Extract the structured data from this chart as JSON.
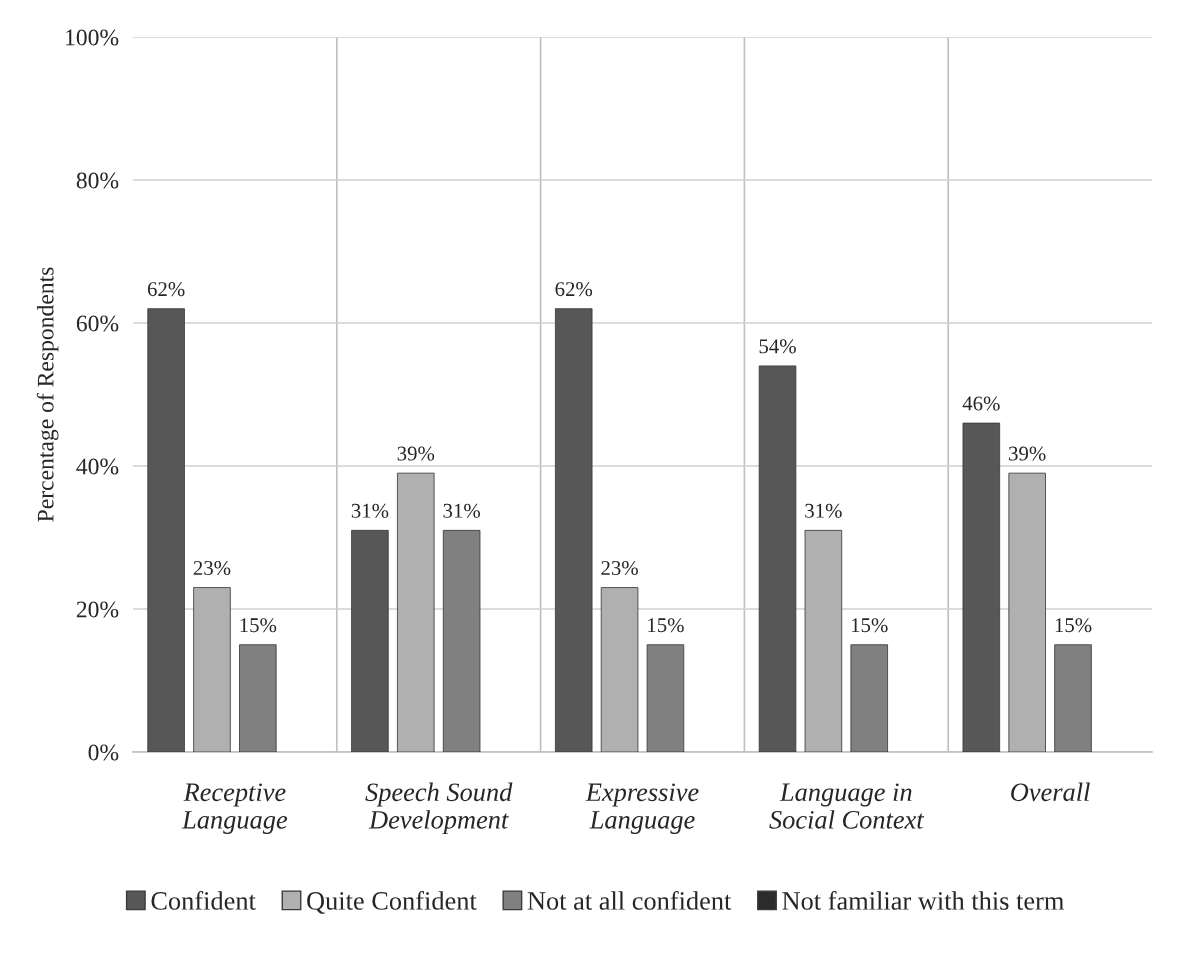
{
  "chart_data": {
    "type": "bar",
    "ylabel": "Percentage of Respondents",
    "categories": [
      "Receptive\nLanguage",
      "Speech Sound\nDevelopment",
      "Expressive\nLanguage",
      "Language in\nSocial Context",
      "Overall"
    ],
    "series": [
      {
        "name": "Confident",
        "color": "#575757",
        "values": [
          62,
          31,
          62,
          54,
          46
        ],
        "value_labels": [
          "62%",
          "31%",
          "62%",
          "54%",
          "46%"
        ]
      },
      {
        "name": "Quite Confident",
        "color": "#b0b0b0",
        "values": [
          23,
          39,
          23,
          31,
          39
        ],
        "value_labels": [
          "23%",
          "39%",
          "23%",
          "31%",
          "39%"
        ]
      },
      {
        "name": "Not at all confident",
        "color": "#808080",
        "values": [
          15,
          31,
          15,
          15,
          15
        ],
        "value_labels": [
          "15%",
          "31%",
          "15%",
          "15%",
          "15%"
        ]
      },
      {
        "name": "Not familiar with this term",
        "color": "#2b2b2b",
        "values": [
          null,
          null,
          null,
          null,
          null
        ]
      }
    ],
    "ylim": [
      0,
      100
    ],
    "yticks": [
      {
        "value": 0,
        "label": "0%"
      },
      {
        "value": 20,
        "label": "20%"
      },
      {
        "value": 40,
        "label": "40%"
      },
      {
        "value": 60,
        "label": "60%"
      },
      {
        "value": 80,
        "label": "80%"
      },
      {
        "value": 100,
        "label": "100%"
      }
    ],
    "grid": true,
    "legend": "bottom"
  }
}
